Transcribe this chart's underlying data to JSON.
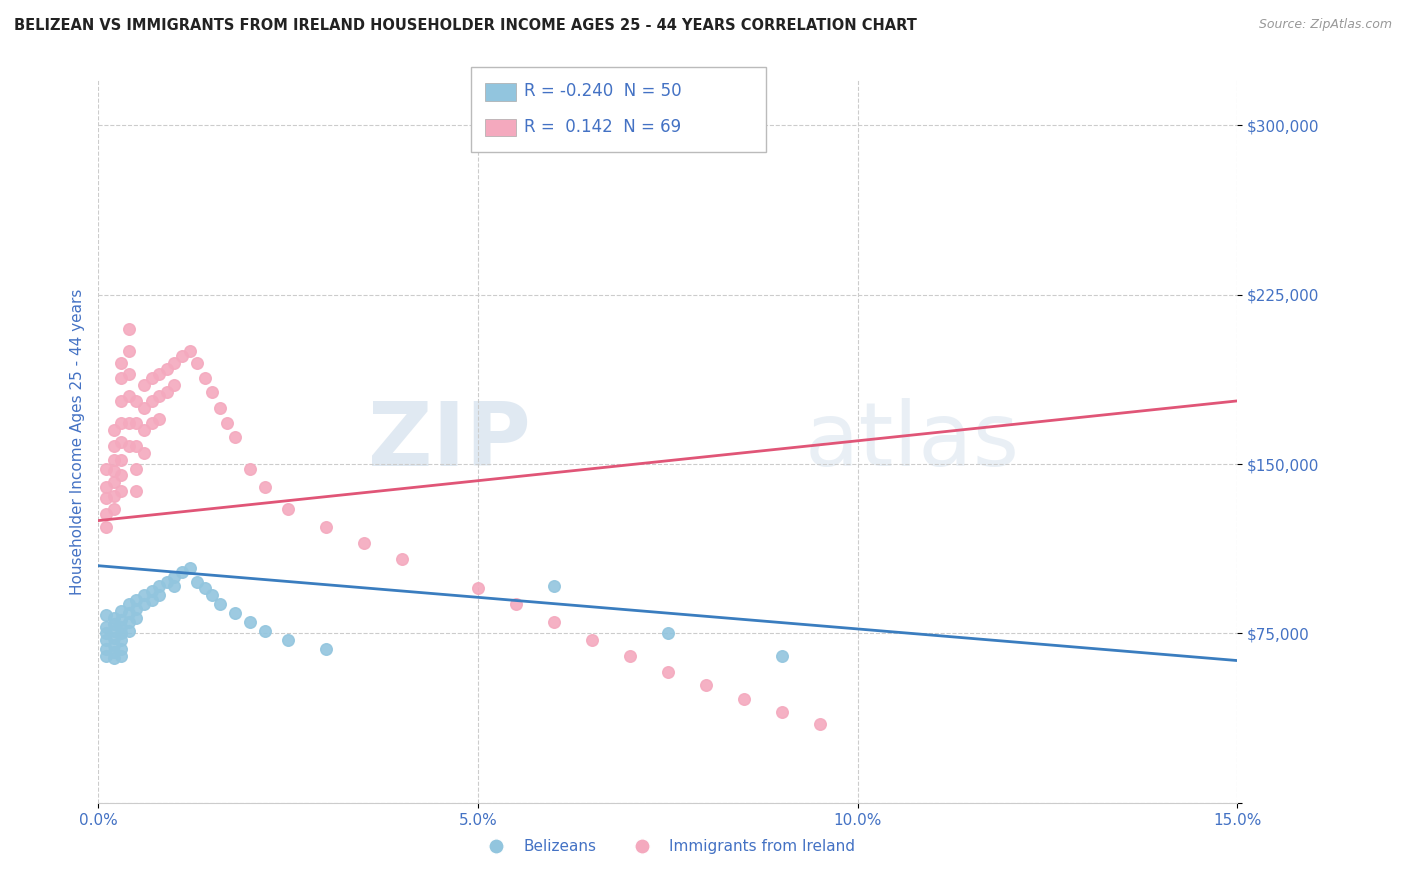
{
  "title": "BELIZEAN VS IMMIGRANTS FROM IRELAND HOUSEHOLDER INCOME AGES 25 - 44 YEARS CORRELATION CHART",
  "source": "Source: ZipAtlas.com",
  "ylabel": "Householder Income Ages 25 - 44 years",
  "xmin": 0.0,
  "xmax": 0.15,
  "ymin": 0,
  "ymax": 320000,
  "yticks": [
    0,
    75000,
    150000,
    225000,
    300000
  ],
  "xticks": [
    0.0,
    0.05,
    0.1,
    0.15
  ],
  "xtick_labels": [
    "0.0%",
    "5.0%",
    "10.0%",
    "15.0%"
  ],
  "ytick_labels": [
    "",
    "$75,000",
    "$150,000",
    "$225,000",
    "$300,000"
  ],
  "blue_R": -0.24,
  "blue_N": 50,
  "pink_R": 0.142,
  "pink_N": 69,
  "blue_color": "#92c5de",
  "pink_color": "#f4a9be",
  "blue_line_color": "#3a7dbf",
  "pink_line_color": "#e05577",
  "tick_label_color": "#4472c4",
  "background_color": "#ffffff",
  "blue_trend_x0": 0.0,
  "blue_trend_y0": 105000,
  "blue_trend_x1": 0.15,
  "blue_trend_y1": 63000,
  "pink_trend_x0": 0.0,
  "pink_trend_y0": 125000,
  "pink_trend_x1": 0.15,
  "pink_trend_y1": 178000,
  "blue_scatter_x": [
    0.001,
    0.001,
    0.001,
    0.001,
    0.001,
    0.001,
    0.002,
    0.002,
    0.002,
    0.002,
    0.002,
    0.002,
    0.002,
    0.003,
    0.003,
    0.003,
    0.003,
    0.003,
    0.003,
    0.003,
    0.004,
    0.004,
    0.004,
    0.004,
    0.005,
    0.005,
    0.005,
    0.006,
    0.006,
    0.007,
    0.007,
    0.008,
    0.008,
    0.009,
    0.01,
    0.01,
    0.011,
    0.012,
    0.013,
    0.014,
    0.015,
    0.016,
    0.018,
    0.02,
    0.022,
    0.025,
    0.03,
    0.06,
    0.075,
    0.09
  ],
  "blue_scatter_y": [
    83000,
    78000,
    75000,
    72000,
    68000,
    65000,
    82000,
    79000,
    76000,
    73000,
    70000,
    67000,
    64000,
    85000,
    81000,
    78000,
    75000,
    72000,
    68000,
    65000,
    88000,
    84000,
    80000,
    76000,
    90000,
    86000,
    82000,
    92000,
    88000,
    94000,
    90000,
    96000,
    92000,
    98000,
    100000,
    96000,
    102000,
    104000,
    98000,
    95000,
    92000,
    88000,
    84000,
    80000,
    76000,
    72000,
    68000,
    96000,
    75000,
    65000
  ],
  "pink_scatter_x": [
    0.001,
    0.001,
    0.001,
    0.001,
    0.001,
    0.002,
    0.002,
    0.002,
    0.002,
    0.002,
    0.002,
    0.002,
    0.003,
    0.003,
    0.003,
    0.003,
    0.003,
    0.003,
    0.003,
    0.003,
    0.004,
    0.004,
    0.004,
    0.004,
    0.004,
    0.004,
    0.005,
    0.005,
    0.005,
    0.005,
    0.005,
    0.006,
    0.006,
    0.006,
    0.006,
    0.007,
    0.007,
    0.007,
    0.008,
    0.008,
    0.008,
    0.009,
    0.009,
    0.01,
    0.01,
    0.011,
    0.012,
    0.013,
    0.014,
    0.015,
    0.016,
    0.017,
    0.018,
    0.02,
    0.022,
    0.025,
    0.03,
    0.035,
    0.04,
    0.05,
    0.055,
    0.06,
    0.065,
    0.07,
    0.075,
    0.08,
    0.085,
    0.09,
    0.095
  ],
  "pink_scatter_y": [
    148000,
    140000,
    135000,
    128000,
    122000,
    165000,
    158000,
    152000,
    147000,
    142000,
    136000,
    130000,
    195000,
    188000,
    178000,
    168000,
    160000,
    152000,
    145000,
    138000,
    210000,
    200000,
    190000,
    180000,
    168000,
    158000,
    178000,
    168000,
    158000,
    148000,
    138000,
    185000,
    175000,
    165000,
    155000,
    188000,
    178000,
    168000,
    190000,
    180000,
    170000,
    192000,
    182000,
    195000,
    185000,
    198000,
    200000,
    195000,
    188000,
    182000,
    175000,
    168000,
    162000,
    148000,
    140000,
    130000,
    122000,
    115000,
    108000,
    95000,
    88000,
    80000,
    72000,
    65000,
    58000,
    52000,
    46000,
    40000,
    35000
  ]
}
